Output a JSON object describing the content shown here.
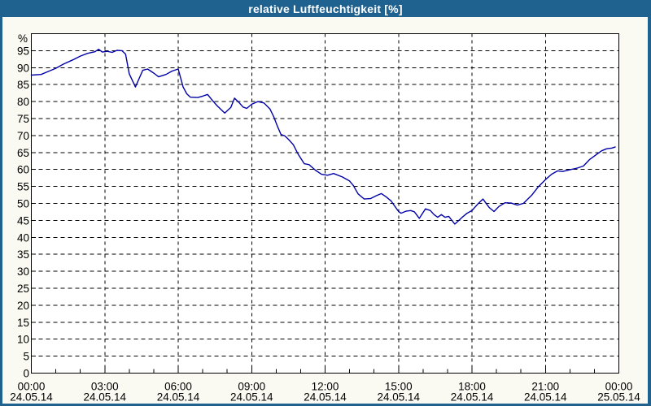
{
  "window": {
    "title": "relative Luftfeuchtigkeit [%]",
    "title_bar_color": "#1F618F",
    "border_color": "#1F618F",
    "background_color": "#FAFAF3",
    "plot_background_color": "#FFFFFF"
  },
  "chart_data": {
    "type": "line",
    "title": "relative Luftfeuchtigkeit [%]",
    "xlabel": "",
    "ylabel": "%",
    "ylim": [
      0,
      100
    ],
    "xlim_hours": [
      0,
      24
    ],
    "grid": true,
    "grid_style": "dashed-black",
    "line_color": "#0000A8",
    "y_ticks": [
      0,
      5,
      10,
      15,
      20,
      25,
      30,
      35,
      40,
      45,
      50,
      55,
      60,
      65,
      70,
      75,
      80,
      85,
      90,
      95
    ],
    "x_ticks": [
      {
        "hour": 0,
        "time": "00:00",
        "date": "24.05.14"
      },
      {
        "hour": 3,
        "time": "03:00",
        "date": "24.05.14"
      },
      {
        "hour": 6,
        "time": "06:00",
        "date": "24.05.14"
      },
      {
        "hour": 9,
        "time": "09:00",
        "date": "24.05.14"
      },
      {
        "hour": 12,
        "time": "12:00",
        "date": "24.05.14"
      },
      {
        "hour": 15,
        "time": "15:00",
        "date": "24.05.14"
      },
      {
        "hour": 18,
        "time": "18:00",
        "date": "24.05.14"
      },
      {
        "hour": 21,
        "time": "21:00",
        "date": "24.05.14"
      },
      {
        "hour": 24,
        "time": "00:00",
        "date": "25.05.14"
      }
    ],
    "series": [
      {
        "name": "relative Luftfeuchtigkeit",
        "unit": "%",
        "points": [
          [
            0,
            87.8
          ],
          [
            0.4,
            88.0
          ],
          [
            0.7,
            88.9
          ],
          [
            1.0,
            89.8
          ],
          [
            1.3,
            91.0
          ],
          [
            1.7,
            92.3
          ],
          [
            2.0,
            93.4
          ],
          [
            2.3,
            94.2
          ],
          [
            2.6,
            94.7
          ],
          [
            2.75,
            95.4
          ],
          [
            2.9,
            94.6
          ],
          [
            3.1,
            94.8
          ],
          [
            3.3,
            94.5
          ],
          [
            3.5,
            95.1
          ],
          [
            3.7,
            95.0
          ],
          [
            3.85,
            94.0
          ],
          [
            4.0,
            88.2
          ],
          [
            4.25,
            84.3
          ],
          [
            4.55,
            89.2
          ],
          [
            4.75,
            89.6
          ],
          [
            5.0,
            88.4
          ],
          [
            5.2,
            87.3
          ],
          [
            5.5,
            88.0
          ],
          [
            5.75,
            89.0
          ],
          [
            6.0,
            89.6
          ],
          [
            6.2,
            84.3
          ],
          [
            6.35,
            82.3
          ],
          [
            6.5,
            81.3
          ],
          [
            6.8,
            81.2
          ],
          [
            7.0,
            81.6
          ],
          [
            7.2,
            82.1
          ],
          [
            7.4,
            80.3
          ],
          [
            7.6,
            78.7
          ],
          [
            7.9,
            76.6
          ],
          [
            8.15,
            78.3
          ],
          [
            8.3,
            81.0
          ],
          [
            8.5,
            79.6
          ],
          [
            8.65,
            78.4
          ],
          [
            8.8,
            78.0
          ],
          [
            9.0,
            79.2
          ],
          [
            9.25,
            80.0
          ],
          [
            9.5,
            79.6
          ],
          [
            9.75,
            77.8
          ],
          [
            9.9,
            75.6
          ],
          [
            10.05,
            72.8
          ],
          [
            10.2,
            70.3
          ],
          [
            10.35,
            69.9
          ],
          [
            10.5,
            68.9
          ],
          [
            10.7,
            67.3
          ],
          [
            10.9,
            64.5
          ],
          [
            11.15,
            61.7
          ],
          [
            11.35,
            61.4
          ],
          [
            11.6,
            59.8
          ],
          [
            11.85,
            58.6
          ],
          [
            12.1,
            58.3
          ],
          [
            12.35,
            58.8
          ],
          [
            12.7,
            57.8
          ],
          [
            13.0,
            56.6
          ],
          [
            13.15,
            55.3
          ],
          [
            13.35,
            52.8
          ],
          [
            13.6,
            51.3
          ],
          [
            13.85,
            51.4
          ],
          [
            14.1,
            52.3
          ],
          [
            14.3,
            52.9
          ],
          [
            14.5,
            51.9
          ],
          [
            14.7,
            50.7
          ],
          [
            15.0,
            47.6
          ],
          [
            15.1,
            47.1
          ],
          [
            15.3,
            47.7
          ],
          [
            15.5,
            47.9
          ],
          [
            15.65,
            47.5
          ],
          [
            15.85,
            45.6
          ],
          [
            16.1,
            48.4
          ],
          [
            16.3,
            47.9
          ],
          [
            16.45,
            46.7
          ],
          [
            16.6,
            45.9
          ],
          [
            16.75,
            46.7
          ],
          [
            16.9,
            45.9
          ],
          [
            17.05,
            46.2
          ],
          [
            17.3,
            43.9
          ],
          [
            17.6,
            45.9
          ],
          [
            17.8,
            47.1
          ],
          [
            18.0,
            47.9
          ],
          [
            18.25,
            49.9
          ],
          [
            18.45,
            51.3
          ],
          [
            18.7,
            48.8
          ],
          [
            18.9,
            47.6
          ],
          [
            19.1,
            49.1
          ],
          [
            19.35,
            50.2
          ],
          [
            19.6,
            50.1
          ],
          [
            19.85,
            49.5
          ],
          [
            20.1,
            50.0
          ],
          [
            20.45,
            52.5
          ],
          [
            20.7,
            54.8
          ],
          [
            21.0,
            57.0
          ],
          [
            21.25,
            58.6
          ],
          [
            21.5,
            59.6
          ],
          [
            21.7,
            59.4
          ],
          [
            22.0,
            59.9
          ],
          [
            22.3,
            60.4
          ],
          [
            22.55,
            61.0
          ],
          [
            22.8,
            62.9
          ],
          [
            23.05,
            64.2
          ],
          [
            23.3,
            65.5
          ],
          [
            23.5,
            66.1
          ],
          [
            23.7,
            66.3
          ],
          [
            23.85,
            66.6
          ]
        ]
      }
    ]
  }
}
